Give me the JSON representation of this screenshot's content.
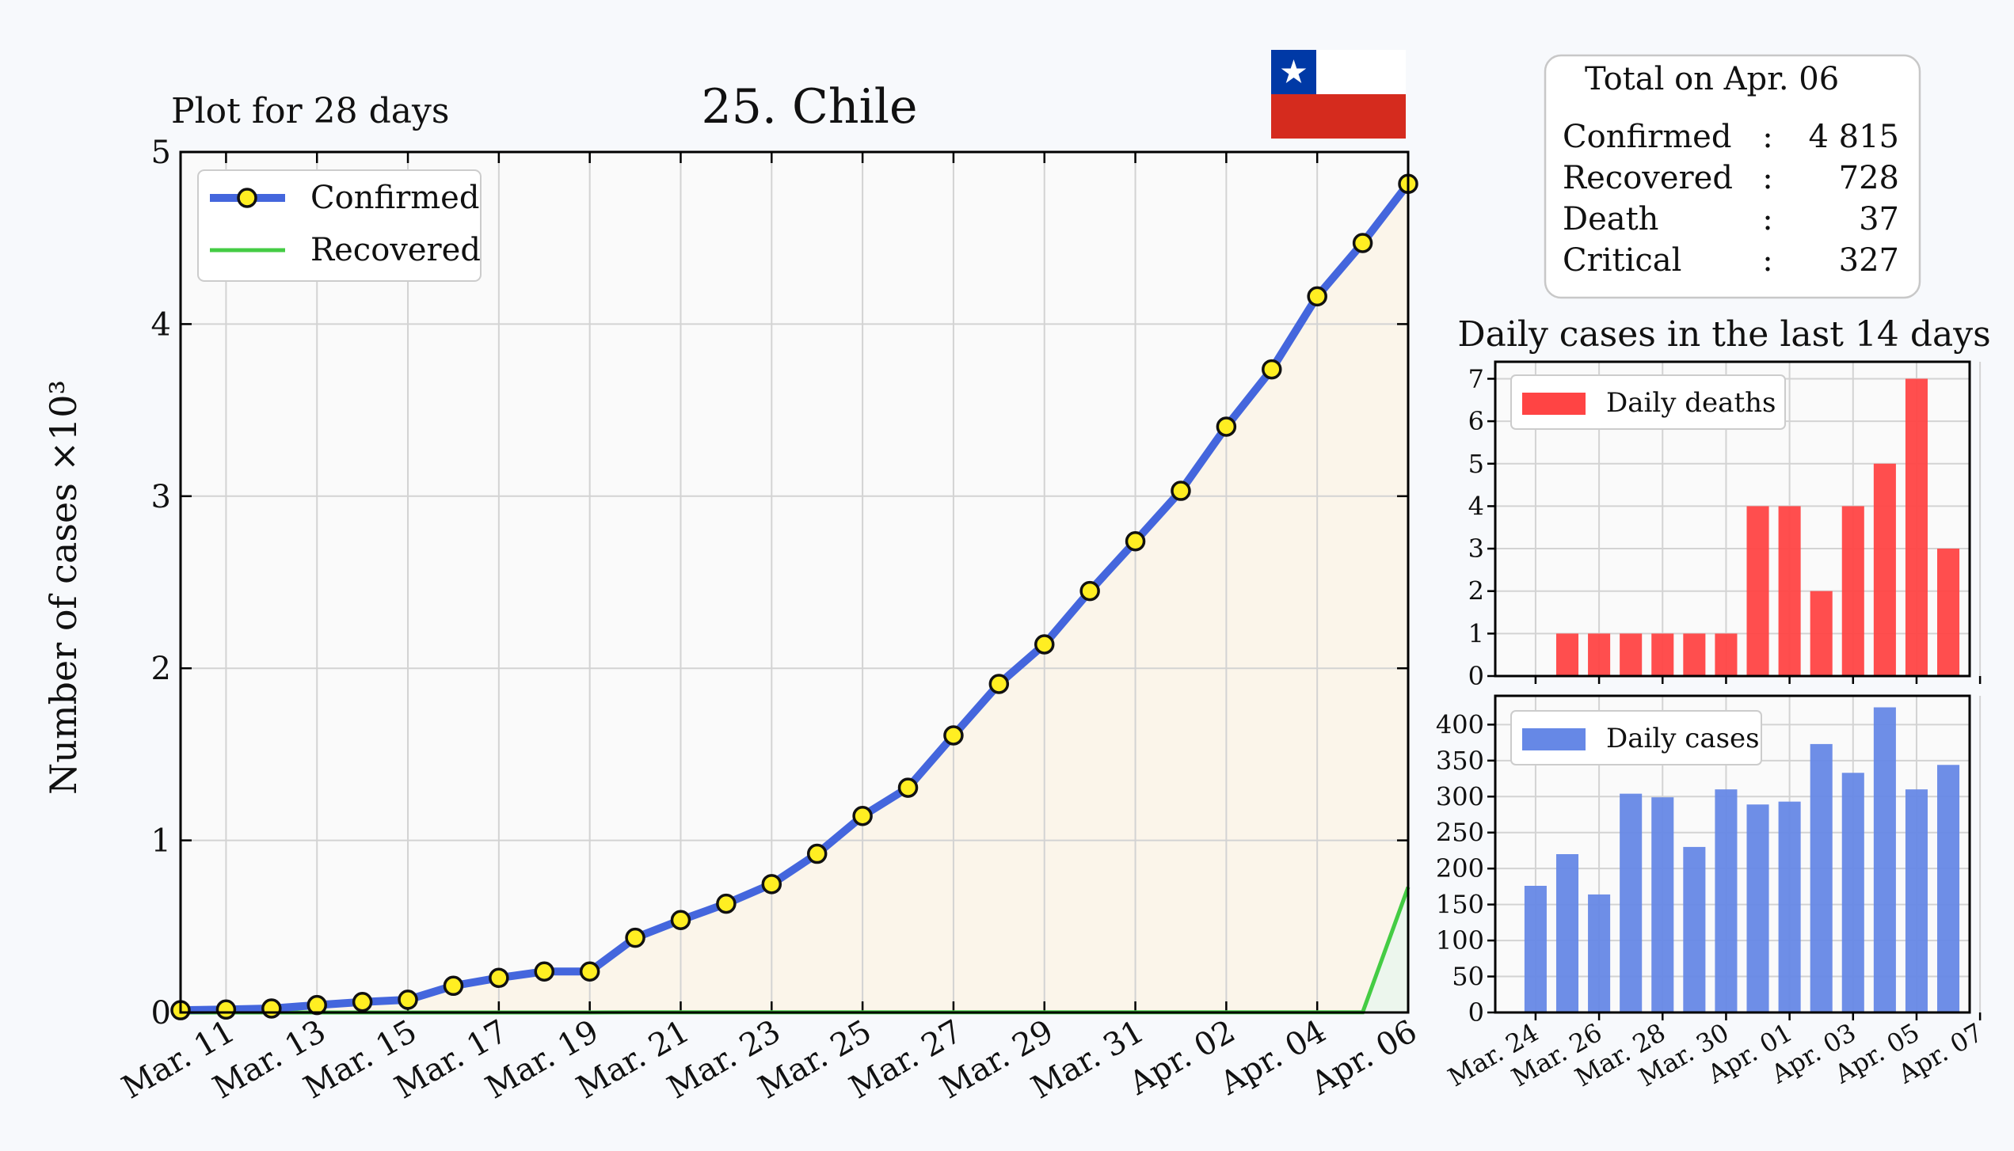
{
  "header": {
    "plot_span": "Plot for 28 days",
    "title": "25. Chile"
  },
  "flag": {
    "name": "Chile",
    "colors": {
      "blue": "#0039a6",
      "white": "#ffffff",
      "red": "#d52b1e"
    }
  },
  "summary": {
    "title": "Total on Apr. 06",
    "rows": [
      {
        "label": "Confirmed",
        "sep": ":",
        "value": "4 815"
      },
      {
        "label": "Recovered",
        "sep": ":",
        "value": "728"
      },
      {
        "label": "Death",
        "sep": ":",
        "value": "37"
      },
      {
        "label": "Critical",
        "sep": ":",
        "value": "327"
      }
    ]
  },
  "chart_data": [
    {
      "type": "line",
      "title": "",
      "xlabel": "",
      "ylabel": "Number of cases ×10³",
      "ylim": [
        0,
        5
      ],
      "yticks": [
        "0",
        "1",
        "2",
        "3",
        "4",
        "5"
      ],
      "x": [
        "Mar. 10",
        "Mar. 11",
        "Mar. 12",
        "Mar. 13",
        "Mar. 14",
        "Mar. 15",
        "Mar. 16",
        "Mar. 17",
        "Mar. 18",
        "Mar. 19",
        "Mar. 20",
        "Mar. 21",
        "Mar. 22",
        "Mar. 23",
        "Mar. 24",
        "Mar. 25",
        "Mar. 26",
        "Mar. 27",
        "Mar. 28",
        "Mar. 29",
        "Mar. 30",
        "Mar. 31",
        "Apr. 01",
        "Apr. 02",
        "Apr. 03",
        "Apr. 04",
        "Apr. 05",
        "Apr. 06"
      ],
      "xtick_labels": [
        "Mar. 11",
        "Mar. 13",
        "Mar. 15",
        "Mar. 17",
        "Mar. 19",
        "Mar. 21",
        "Mar. 23",
        "Mar. 25",
        "Mar. 27",
        "Mar. 29",
        "Mar. 31",
        "Apr. 02",
        "Apr. 04",
        "Apr. 06"
      ],
      "grid": true,
      "legend_position": "top-left",
      "series": [
        {
          "name": "Confirmed",
          "color": "#4466dd",
          "values": [
            0.013,
            0.017,
            0.023,
            0.043,
            0.061,
            0.074,
            0.155,
            0.201,
            0.238,
            0.238,
            0.434,
            0.537,
            0.632,
            0.746,
            0.922,
            1.142,
            1.306,
            1.61,
            1.909,
            2.139,
            2.449,
            2.738,
            3.031,
            3.404,
            3.737,
            4.161,
            4.471,
            4.815
          ]
        },
        {
          "name": "Recovered",
          "color": "#44cc44",
          "values": [
            0,
            0,
            0,
            0,
            0,
            0,
            0,
            0,
            0,
            0,
            0.001,
            0.001,
            0.001,
            0.001,
            0.001,
            0.001,
            0.001,
            0.001,
            0.001,
            0.001,
            0.001,
            0.001,
            0.001,
            0.001,
            0.001,
            0.001,
            0.001,
            0.728
          ]
        }
      ]
    },
    {
      "type": "bar",
      "title": "Daily cases in the last 14 days",
      "ylim": [
        0,
        7.4
      ],
      "yticks": [
        "0",
        "1",
        "2",
        "3",
        "4",
        "5",
        "6",
        "7"
      ],
      "categories": [
        "Mar. 24",
        "Mar. 25",
        "Mar. 26",
        "Mar. 27",
        "Mar. 28",
        "Mar. 29",
        "Mar. 30",
        "Mar. 31",
        "Apr. 01",
        "Apr. 02",
        "Apr. 03",
        "Apr. 04",
        "Apr. 05",
        "Apr. 06"
      ],
      "grid": true,
      "legend_position": "top-left",
      "series": [
        {
          "name": "Daily deaths",
          "color": "#ff4444",
          "values": [
            0,
            1,
            1,
            1,
            1,
            1,
            1,
            4,
            4,
            2,
            4,
            5,
            7,
            3
          ]
        }
      ]
    },
    {
      "type": "bar",
      "ylim": [
        0,
        440
      ],
      "yticks": [
        "0",
        "50",
        "100",
        "150",
        "200",
        "250",
        "300",
        "350",
        "400"
      ],
      "categories": [
        "Mar. 24",
        "Mar. 25",
        "Mar. 26",
        "Mar. 27",
        "Mar. 28",
        "Mar. 29",
        "Mar. 30",
        "Mar. 31",
        "Apr. 01",
        "Apr. 02",
        "Apr. 03",
        "Apr. 04",
        "Apr. 05",
        "Apr. 06"
      ],
      "xtick_labels": [
        "Mar. 24",
        "Mar. 26",
        "Mar. 28",
        "Mar. 30",
        "Apr. 01",
        "Apr. 03",
        "Apr. 05",
        "Apr. 07"
      ],
      "grid": true,
      "legend_position": "top-left",
      "series": [
        {
          "name": "Daily cases",
          "color": "#6688e6",
          "values": [
            176,
            220,
            164,
            304,
            299,
            230,
            310,
            289,
            293,
            373,
            333,
            424,
            310,
            344
          ]
        }
      ]
    }
  ]
}
